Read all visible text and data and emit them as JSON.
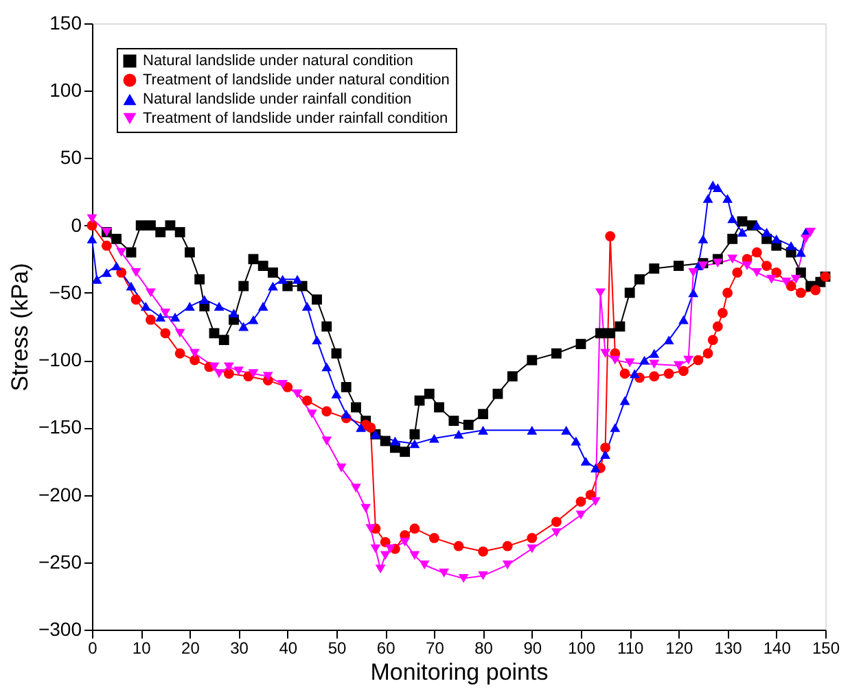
{
  "chart_data": {
    "type": "line",
    "xlabel": "Monitoring points",
    "ylabel": "Stress (kPa)",
    "xlim": [
      0,
      150
    ],
    "ylim": [
      -300,
      150
    ],
    "xticks": [
      0,
      10,
      20,
      30,
      40,
      50,
      60,
      70,
      80,
      90,
      100,
      110,
      120,
      130,
      140,
      150
    ],
    "yticks": [
      -300,
      -250,
      -200,
      -150,
      -100,
      -50,
      0,
      50,
      100,
      150
    ],
    "grid": false,
    "legend": "top left",
    "line_style": "solid",
    "series": [
      {
        "name": "Natural landslide under natural condition",
        "color": "#000000",
        "marker": "square",
        "x": [
          3,
          5,
          8,
          10,
          12,
          14,
          16,
          18,
          20,
          22,
          23,
          25,
          27,
          29,
          31,
          33,
          35,
          37,
          40,
          43,
          46,
          48,
          50,
          52,
          54,
          56,
          58,
          60,
          62,
          64,
          66,
          67,
          69,
          71,
          74,
          77,
          80,
          83,
          86,
          90,
          95,
          100,
          104,
          106,
          108,
          110,
          112,
          115,
          120,
          125,
          128,
          131,
          133,
          135,
          138,
          140,
          143,
          145,
          147,
          149,
          150
        ],
        "values": [
          -5,
          -10,
          -20,
          0,
          0,
          -5,
          0,
          -5,
          -20,
          -40,
          -60,
          -80,
          -85,
          -70,
          -45,
          -25,
          -30,
          -35,
          -45,
          -45,
          -55,
          -75,
          -95,
          -120,
          -135,
          -145,
          -155,
          -160,
          -165,
          -168,
          -155,
          -130,
          -125,
          -135,
          -145,
          -148,
          -140,
          -125,
          -112,
          -100,
          -95,
          -88,
          -80,
          -80,
          -75,
          -50,
          -40,
          -32,
          -30,
          -28,
          -25,
          -10,
          3,
          0,
          -10,
          -15,
          -20,
          -35,
          -45,
          -42,
          -38
        ]
      },
      {
        "name": "Treatment of landslide under natural condition",
        "color": "#ff0000",
        "marker": "circle",
        "x": [
          0,
          3,
          6,
          9,
          12,
          15,
          18,
          21,
          24,
          28,
          32,
          36,
          40,
          44,
          48,
          52,
          56,
          57,
          58,
          60,
          62,
          64,
          66,
          70,
          75,
          80,
          85,
          90,
          95,
          100,
          102,
          104,
          105,
          106,
          107,
          109,
          112,
          115,
          118,
          121,
          124,
          126,
          127,
          128,
          129,
          130,
          132,
          134,
          136,
          138,
          140,
          143,
          145,
          148,
          150
        ],
        "values": [
          0,
          -15,
          -35,
          -55,
          -70,
          -80,
          -95,
          -100,
          -105,
          -110,
          -112,
          -115,
          -120,
          -130,
          -138,
          -143,
          -148,
          -150,
          -225,
          -235,
          -240,
          -230,
          -225,
          -232,
          -238,
          -242,
          -238,
          -232,
          -220,
          -205,
          -200,
          -180,
          -165,
          -8,
          -95,
          -110,
          -113,
          -112,
          -110,
          -108,
          -100,
          -95,
          -85,
          -75,
          -65,
          -50,
          -35,
          -25,
          -20,
          -30,
          -35,
          -45,
          -50,
          -48,
          -38
        ]
      },
      {
        "name": "Natural landslide under rainfall condition",
        "color": "#0000ff",
        "marker": "triangle-up",
        "x": [
          0,
          1,
          3,
          5,
          8,
          11,
          14,
          17,
          20,
          23,
          26,
          29,
          31,
          33,
          35,
          37,
          39,
          42,
          44,
          46,
          48,
          50,
          52,
          55,
          58,
          62,
          66,
          70,
          75,
          80,
          90,
          97,
          99,
          101,
          103,
          105,
          107,
          109,
          111,
          113,
          115,
          118,
          121,
          123,
          124,
          125,
          126,
          127,
          128,
          130,
          131,
          133,
          136,
          138,
          140,
          143,
          145,
          146
        ],
        "values": [
          -10,
          -40,
          -35,
          -30,
          -45,
          -60,
          -68,
          -68,
          -60,
          -55,
          -60,
          -65,
          -75,
          -70,
          -60,
          -45,
          -40,
          -40,
          -60,
          -85,
          -105,
          -125,
          -140,
          -150,
          -155,
          -160,
          -162,
          -158,
          -155,
          -152,
          -152,
          -152,
          -160,
          -175,
          -180,
          -170,
          -150,
          -130,
          -110,
          -100,
          -95,
          -85,
          -70,
          -50,
          -30,
          -10,
          20,
          30,
          28,
          20,
          5,
          -5,
          0,
          -5,
          -10,
          -15,
          -20,
          -5
        ]
      },
      {
        "name": "Treatment of landslide under rainfall condition",
        "color": "#ff00ff",
        "marker": "triangle-down",
        "x": [
          0,
          3,
          6,
          9,
          12,
          15,
          18,
          21,
          25,
          26,
          28,
          30,
          33,
          36,
          39,
          42,
          45,
          48,
          51,
          54,
          56,
          57,
          58,
          59,
          60,
          61,
          64,
          66,
          68,
          72,
          76,
          80,
          85,
          90,
          95,
          100,
          103,
          104,
          105,
          107,
          110,
          115,
          120,
          122,
          123,
          125,
          128,
          131,
          134,
          136,
          139,
          142,
          144,
          146,
          147
        ],
        "values": [
          5,
          -5,
          -20,
          -35,
          -50,
          -65,
          -80,
          -95,
          -105,
          -110,
          -105,
          -108,
          -110,
          -112,
          -118,
          -125,
          -140,
          -160,
          -180,
          -195,
          -210,
          -225,
          -240,
          -255,
          -245,
          -240,
          -235,
          -245,
          -252,
          -258,
          -262,
          -260,
          -252,
          -240,
          -228,
          -215,
          -205,
          -50,
          -95,
          -100,
          -102,
          -103,
          -104,
          -100,
          -35,
          -30,
          -28,
          -25,
          -30,
          -35,
          -40,
          -42,
          -40,
          -10,
          -5
        ]
      }
    ]
  }
}
